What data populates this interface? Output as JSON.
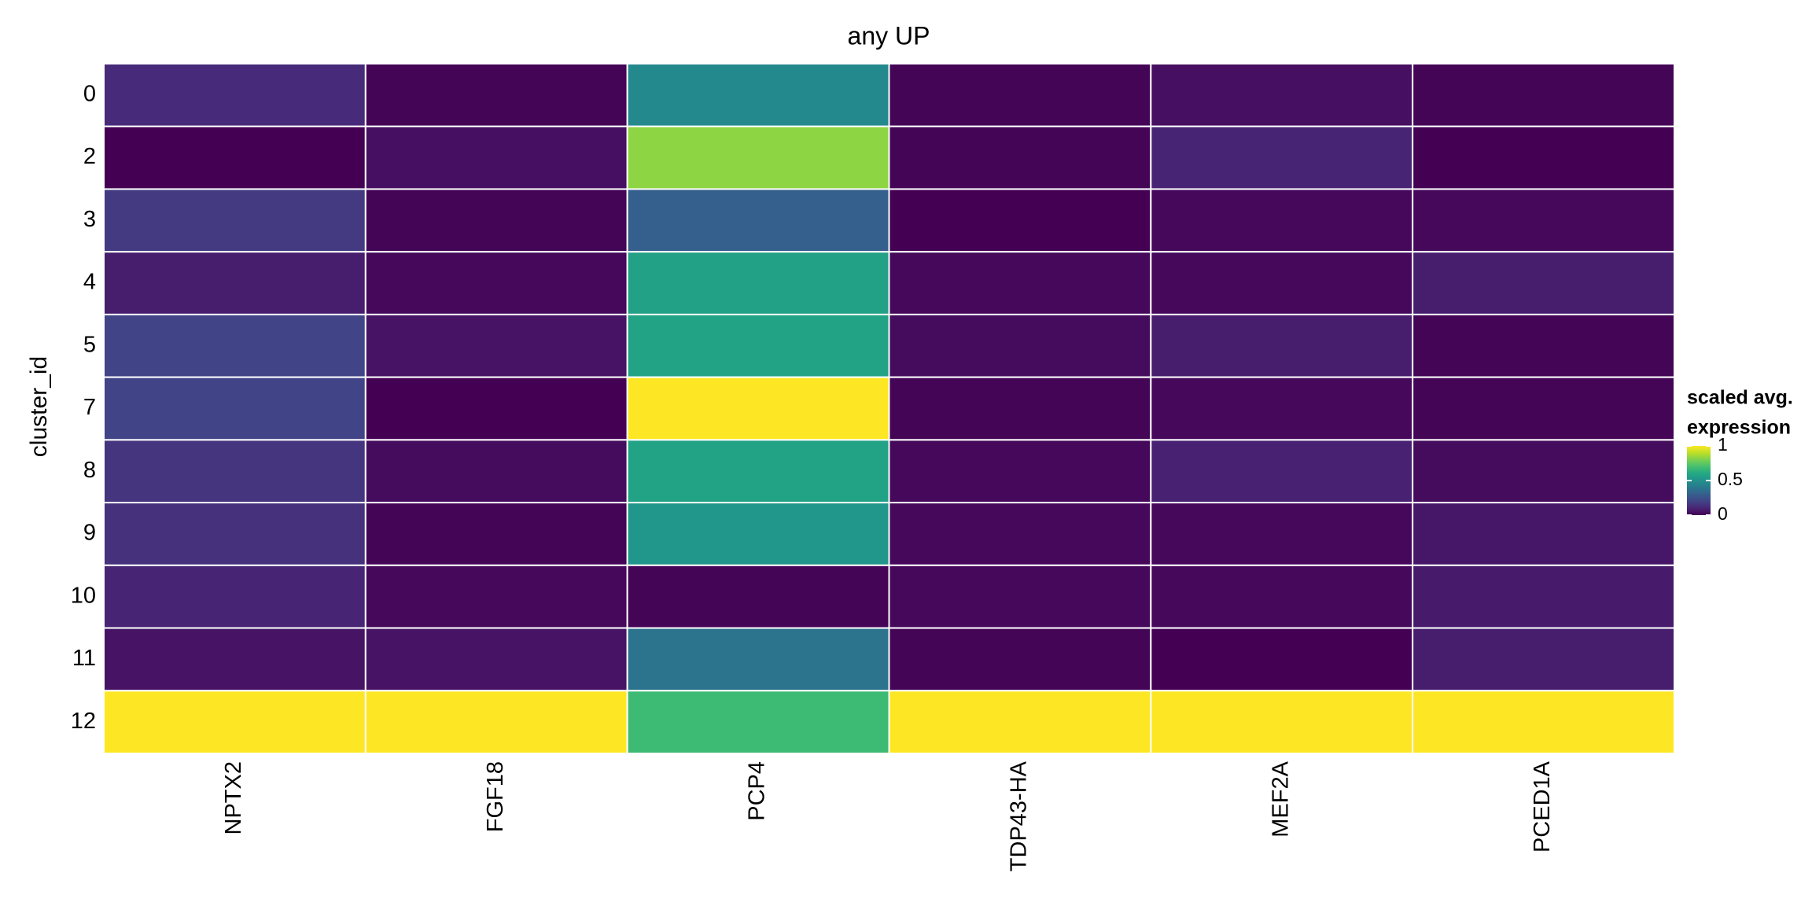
{
  "chart_data": {
    "type": "heatmap",
    "title": "any UP",
    "y_label": "cluster_id",
    "x_categories": [
      "NPTX2",
      "FGF18",
      "PCP4",
      "TDP43-HA",
      "MEF2A",
      "PCED1A"
    ],
    "y_categories": [
      "0",
      "2",
      "3",
      "4",
      "5",
      "7",
      "8",
      "9",
      "10",
      "11",
      "12"
    ],
    "z": [
      [
        0.12,
        0.01,
        0.47,
        0.01,
        0.04,
        0.01
      ],
      [
        0.0,
        0.04,
        0.83,
        0.01,
        0.1,
        0.0
      ],
      [
        0.17,
        0.01,
        0.3,
        0.0,
        0.02,
        0.02
      ],
      [
        0.08,
        0.02,
        0.57,
        0.02,
        0.02,
        0.08
      ],
      [
        0.2,
        0.05,
        0.58,
        0.03,
        0.08,
        0.01
      ],
      [
        0.2,
        0.0,
        1.0,
        0.01,
        0.02,
        0.01
      ],
      [
        0.15,
        0.03,
        0.58,
        0.02,
        0.09,
        0.03
      ],
      [
        0.14,
        0.01,
        0.52,
        0.02,
        0.02,
        0.06
      ],
      [
        0.1,
        0.02,
        0.01,
        0.02,
        0.02,
        0.07
      ],
      [
        0.05,
        0.05,
        0.38,
        0.01,
        0.0,
        0.08
      ],
      [
        1.0,
        1.0,
        0.68,
        1.0,
        1.0,
        1.0
      ]
    ],
    "zlim": [
      0,
      1
    ],
    "legend_title": [
      "scaled avg.",
      "expression"
    ],
    "legend_ticks": [
      0,
      0.5,
      1
    ],
    "colorscale": [
      "#440154",
      "#482475",
      "#414487",
      "#355f8d",
      "#2a788e",
      "#21918c",
      "#22a884",
      "#44bf70",
      "#7ad151",
      "#bddf26",
      "#fde725"
    ]
  }
}
